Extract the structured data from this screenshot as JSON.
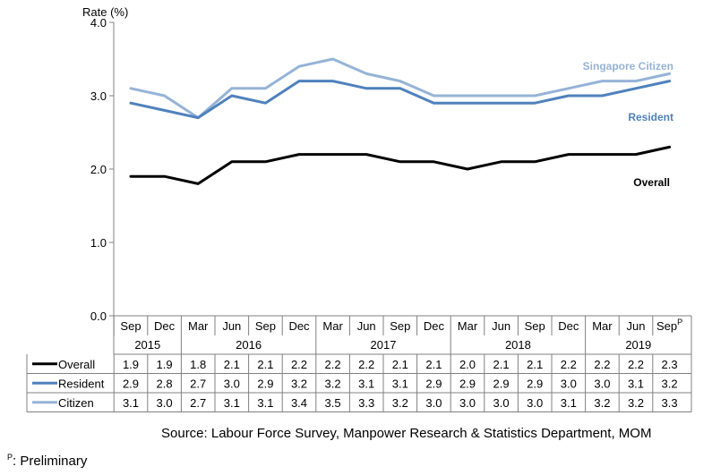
{
  "chart_data": {
    "type": "line",
    "ylabel": "Rate (%)",
    "ylim": [
      0,
      4
    ],
    "yticks": [
      "0.0",
      "1.0",
      "2.0",
      "3.0",
      "4.0"
    ],
    "categories": [
      "Sep",
      "Dec",
      "Mar",
      "Jun",
      "Sep",
      "Dec",
      "Mar",
      "Jun",
      "Sep",
      "Dec",
      "Mar",
      "Jun",
      "Sep",
      "Dec",
      "Mar",
      "Jun",
      "Sep"
    ],
    "last_category_superscript": "P",
    "years": [
      {
        "label": "2015",
        "span": 2
      },
      {
        "label": "2016",
        "span": 4
      },
      {
        "label": "2017",
        "span": 4
      },
      {
        "label": "2018",
        "span": 4
      },
      {
        "label": "2019",
        "span": 3
      }
    ],
    "series": [
      {
        "key": "overall",
        "name": "Overall",
        "color": "#000000",
        "values": [
          1.9,
          1.9,
          1.8,
          2.1,
          2.1,
          2.2,
          2.2,
          2.2,
          2.1,
          2.1,
          2.0,
          2.1,
          2.1,
          2.2,
          2.2,
          2.2,
          2.3
        ]
      },
      {
        "key": "resident",
        "name": "Resident",
        "color": "#4f81bd",
        "values": [
          2.9,
          2.8,
          2.7,
          3.0,
          2.9,
          3.2,
          3.2,
          3.1,
          3.1,
          2.9,
          2.9,
          2.9,
          2.9,
          3.0,
          3.0,
          3.1,
          3.2
        ]
      },
      {
        "key": "citizen",
        "name": "Citizen",
        "color": "#95b3d7",
        "values": [
          3.1,
          3.0,
          2.7,
          3.1,
          3.1,
          3.4,
          3.5,
          3.3,
          3.2,
          3.0,
          3.0,
          3.0,
          3.0,
          3.1,
          3.2,
          3.2,
          3.3
        ]
      }
    ],
    "line_labels": [
      {
        "series": "citizen",
        "text": "Singapore Citizen"
      },
      {
        "series": "resident",
        "text": "Resident"
      },
      {
        "series": "overall",
        "text": "Overall"
      }
    ],
    "grid": false
  },
  "source": "Source: Labour Force Survey, Manpower Research & Statistics Department, MOM",
  "note": {
    "marker": "P",
    "text": ": Preliminary"
  }
}
